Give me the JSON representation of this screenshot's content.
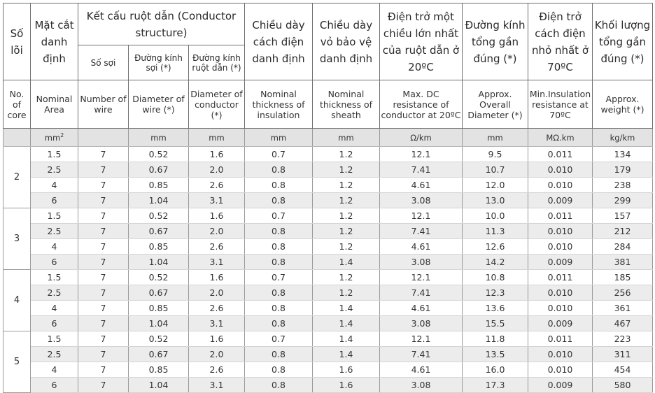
{
  "header_vi": {
    "so_loi": "Số lõi",
    "mat_cat": "Mặt cắt danh định",
    "ket_cau": "Kết cấu ruột dẫn (Conductor structure)",
    "so_soi": "Số sợi",
    "dk_soi": "Đường kính sợi (*)",
    "dk_ruot": "Đường kính ruột dẫn (*)",
    "cd_cach_dien": "Chiều dày cách điện danh định",
    "cd_vo": "Chiều dày vỏ bảo vệ danh định",
    "dien_tro": "Điện trở một chiều lớn nhất của ruột dẫn ở 20ºC",
    "dk_tong": "Đường kính tổng gần đúng (*)",
    "dt_cach_dien": "Điện trở cách điện nhỏ nhất ở 70ºC",
    "khoi_luong": "Khối lượng tổng gần đúng (*)"
  },
  "header_en": {
    "core": "No. of core",
    "area": "Nominal Area",
    "wire": "Number of wire",
    "d_wire": "Diameter of wire (*)",
    "d_cond": "Diameter of conductor (*)",
    "t_ins": "Nominal thickness of insulation",
    "t_sheath": "Nominal thickness of sheath",
    "resistance": "Max. DC resistance of conductor at 20ºC",
    "overall": "Approx. Overall Diameter (*)",
    "ins_res": "Min.Insulation resistance at 70ºC",
    "weight": "Approx. weight (*)"
  },
  "units": {
    "area": "mm",
    "area_sup": "2",
    "wire": "",
    "d_wire": "mm",
    "d_cond": "mm",
    "t_ins": "mm",
    "t_sheath": "mm",
    "resistance": "Ω/km",
    "overall": "mm",
    "ins_res": "MΩ.km",
    "weight": "kg/km"
  },
  "groups": [
    {
      "core": "2",
      "rows": [
        [
          "1.5",
          "7",
          "0.52",
          "1.6",
          "0.7",
          "1.2",
          "12.1",
          "9.5",
          "0.011",
          "134"
        ],
        [
          "2.5",
          "7",
          "0.67",
          "2.0",
          "0.8",
          "1.2",
          "7.41",
          "10.7",
          "0.010",
          "179"
        ],
        [
          "4",
          "7",
          "0.85",
          "2.6",
          "0.8",
          "1.2",
          "4.61",
          "12.0",
          "0.010",
          "238"
        ],
        [
          "6",
          "7",
          "1.04",
          "3.1",
          "0.8",
          "1.2",
          "3.08",
          "13.0",
          "0.009",
          "299"
        ]
      ]
    },
    {
      "core": "3",
      "rows": [
        [
          "1.5",
          "7",
          "0.52",
          "1.6",
          "0.7",
          "1.2",
          "12.1",
          "10.0",
          "0.011",
          "157"
        ],
        [
          "2.5",
          "7",
          "0.67",
          "2.0",
          "0.8",
          "1.2",
          "7.41",
          "11.3",
          "0.010",
          "212"
        ],
        [
          "4",
          "7",
          "0.85",
          "2.6",
          "0.8",
          "1.2",
          "4.61",
          "12.6",
          "0.010",
          "284"
        ],
        [
          "6",
          "7",
          "1.04",
          "3.1",
          "0.8",
          "1.4",
          "3.08",
          "14.2",
          "0.009",
          "381"
        ]
      ]
    },
    {
      "core": "4",
      "rows": [
        [
          "1.5",
          "7",
          "0.52",
          "1.6",
          "0.7",
          "1.2",
          "12.1",
          "10.8",
          "0.011",
          "185"
        ],
        [
          "2.5",
          "7",
          "0.67",
          "2.0",
          "0.8",
          "1.2",
          "7.41",
          "12.3",
          "0.010",
          "256"
        ],
        [
          "4",
          "7",
          "0.85",
          "2.6",
          "0.8",
          "1.4",
          "4.61",
          "13.6",
          "0.010",
          "361"
        ],
        [
          "6",
          "7",
          "1.04",
          "3.1",
          "0.8",
          "1.4",
          "3.08",
          "15.5",
          "0.009",
          "467"
        ]
      ]
    },
    {
      "core": "5",
      "rows": [
        [
          "1.5",
          "7",
          "0.52",
          "1.6",
          "0.7",
          "1.4",
          "12.1",
          "11.8",
          "0.011",
          "223"
        ],
        [
          "2.5",
          "7",
          "0.67",
          "2.0",
          "0.8",
          "1.4",
          "7.41",
          "13.5",
          "0.010",
          "311"
        ],
        [
          "4",
          "7",
          "0.85",
          "2.6",
          "0.8",
          "1.6",
          "4.61",
          "16.0",
          "0.010",
          "454"
        ],
        [
          "6",
          "7",
          "1.04",
          "3.1",
          "0.8",
          "1.6",
          "3.08",
          "17.3",
          "0.009",
          "580"
        ]
      ]
    }
  ]
}
